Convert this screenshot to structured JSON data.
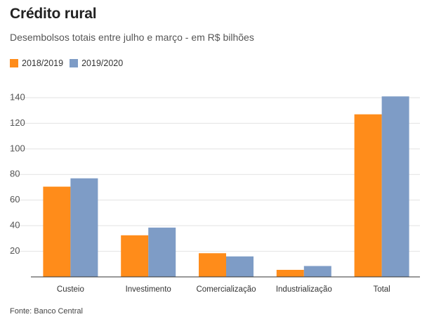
{
  "title": "Crédito rural",
  "subtitle": "Desembolsos totais entre julho e março - em R$ bilhões",
  "source": "Fonte: Banco Central",
  "colors": {
    "series1": "#FF8C1A",
    "series2": "#7E9CC6",
    "grid": "#e2e2e2",
    "axis": "#333333"
  },
  "chart_data": {
    "type": "bar",
    "title": "Crédito rural",
    "subtitle": "Desembolsos totais entre julho e março - em R$ bilhões",
    "xlabel": "",
    "ylabel": "",
    "ylim": [
      0,
      140
    ],
    "yticks": [
      20,
      40,
      60,
      80,
      100,
      120,
      140
    ],
    "grid": true,
    "legend_position": "top-left",
    "categories": [
      "Custeio",
      "Investimento",
      "Comercialização",
      "Industrialização",
      "Total"
    ],
    "series": [
      {
        "name": "2018/2019",
        "values": [
          70.5,
          32.5,
          18.5,
          5.5,
          127
        ]
      },
      {
        "name": "2019/2020",
        "values": [
          77,
          38.5,
          16,
          8.5,
          141
        ]
      }
    ]
  }
}
